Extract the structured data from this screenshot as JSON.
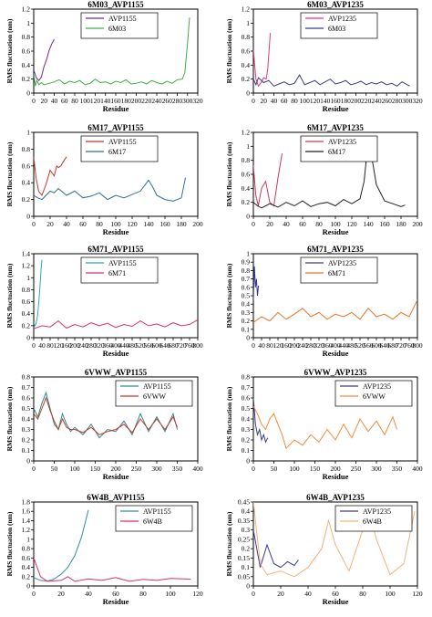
{
  "figure": {
    "ylabel": "RMS fluctuation (nm)",
    "xlabel": "Residue"
  },
  "chart_data": [
    {
      "type": "line",
      "title": "6M03_AVP1155",
      "xlim": [
        0,
        320
      ],
      "ylim": [
        0,
        1.2
      ],
      "xticks": [
        0,
        20,
        40,
        60,
        80,
        100,
        120,
        140,
        160,
        180,
        200,
        220,
        240,
        260,
        280,
        300,
        320
      ],
      "yticks": [
        0,
        0.2,
        0.4,
        0.6,
        0.8,
        1.0,
        1.2
      ],
      "legend": "top-center",
      "series": [
        {
          "name": "AVP1155",
          "color": "#6b2d8f",
          "x": [
            0,
            5,
            10,
            15,
            20,
            25,
            30,
            35,
            40
          ],
          "y": [
            0.33,
            0.22,
            0.18,
            0.23,
            0.38,
            0.48,
            0.61,
            0.7,
            0.77
          ]
        },
        {
          "name": "6M03",
          "color": "#3fae49",
          "x": [
            0,
            3,
            6,
            10,
            15,
            20,
            30,
            40,
            50,
            60,
            70,
            80,
            90,
            100,
            110,
            120,
            130,
            140,
            150,
            160,
            170,
            180,
            190,
            200,
            210,
            220,
            230,
            240,
            250,
            260,
            270,
            280,
            290,
            295,
            300,
            304
          ],
          "y": [
            0.28,
            0.1,
            0.18,
            0.12,
            0.15,
            0.12,
            0.14,
            0.16,
            0.19,
            0.13,
            0.17,
            0.15,
            0.18,
            0.12,
            0.14,
            0.2,
            0.15,
            0.16,
            0.13,
            0.17,
            0.15,
            0.19,
            0.13,
            0.14,
            0.16,
            0.13,
            0.18,
            0.15,
            0.13,
            0.17,
            0.14,
            0.19,
            0.2,
            0.3,
            0.72,
            1.08
          ]
        }
      ]
    },
    {
      "type": "line",
      "title": "6M03_AVP1235",
      "xlim": [
        0,
        320
      ],
      "ylim": [
        0,
        1.2
      ],
      "xticks": [
        0,
        20,
        40,
        60,
        80,
        100,
        120,
        140,
        160,
        180,
        200,
        220,
        240,
        260,
        280,
        300,
        320
      ],
      "yticks": [
        0,
        0.2,
        0.4,
        0.6,
        0.8,
        1.0,
        1.2
      ],
      "legend": "top-center",
      "series": [
        {
          "name": "AVP1235",
          "color": "#e8387a",
          "x": [
            0,
            5,
            10,
            15,
            20,
            25,
            28,
            30,
            33
          ],
          "y": [
            0.62,
            0.2,
            0.1,
            0.15,
            0.22,
            0.2,
            0.35,
            0.55,
            0.86
          ]
        },
        {
          "name": "6M03",
          "color": "#3a3a8c",
          "x": [
            0,
            5,
            10,
            20,
            30,
            40,
            50,
            60,
            70,
            80,
            90,
            100,
            110,
            120,
            130,
            140,
            150,
            160,
            170,
            180,
            190,
            200,
            210,
            220,
            230,
            240,
            250,
            260,
            270,
            280,
            290,
            300,
            305
          ],
          "y": [
            0.2,
            0.12,
            0.22,
            0.15,
            0.18,
            0.1,
            0.13,
            0.16,
            0.12,
            0.14,
            0.26,
            0.12,
            0.15,
            0.18,
            0.12,
            0.16,
            0.2,
            0.13,
            0.15,
            0.18,
            0.12,
            0.14,
            0.17,
            0.12,
            0.15,
            0.13,
            0.16,
            0.12,
            0.14,
            0.1,
            0.16,
            0.12,
            0.1
          ]
        }
      ]
    },
    {
      "type": "line",
      "title": "6M17_AVP1155",
      "xlim": [
        0,
        200
      ],
      "ylim": [
        0,
        1.0
      ],
      "xticks": [
        0,
        20,
        40,
        60,
        80,
        100,
        120,
        140,
        160,
        180,
        200
      ],
      "yticks": [
        0,
        0.2,
        0.4,
        0.6,
        0.8,
        1.0
      ],
      "legend": "top-center",
      "series": [
        {
          "name": "AVP1155",
          "color": "#c0392b",
          "x": [
            0,
            3,
            6,
            10,
            15,
            20,
            25,
            28,
            30,
            33,
            36,
            40
          ],
          "y": [
            0.7,
            0.45,
            0.3,
            0.25,
            0.38,
            0.55,
            0.48,
            0.6,
            0.58,
            0.6,
            0.65,
            0.71
          ]
        },
        {
          "name": "6M17",
          "color": "#2f6f8f",
          "x": [
            0,
            5,
            10,
            15,
            20,
            25,
            30,
            40,
            50,
            60,
            70,
            80,
            90,
            100,
            110,
            120,
            130,
            140,
            145,
            150,
            160,
            170,
            180,
            185
          ],
          "y": [
            0.25,
            0.22,
            0.2,
            0.25,
            0.3,
            0.28,
            0.33,
            0.25,
            0.3,
            0.22,
            0.24,
            0.28,
            0.2,
            0.25,
            0.22,
            0.26,
            0.3,
            0.43,
            0.35,
            0.25,
            0.2,
            0.18,
            0.22,
            0.46
          ]
        }
      ]
    },
    {
      "type": "line",
      "title": "6M17_AVP1235",
      "xlim": [
        0,
        200
      ],
      "ylim": [
        0,
        1.2
      ],
      "xticks": [
        0,
        20,
        40,
        60,
        80,
        100,
        120,
        140,
        160,
        180,
        200
      ],
      "yticks": [
        0,
        0.2,
        0.4,
        0.6,
        0.8,
        1.0,
        1.2
      ],
      "legend": "top-center",
      "series": [
        {
          "name": "AVP1235",
          "color": "#c83a5a",
          "x": [
            0,
            3,
            6,
            10,
            15,
            20,
            25,
            30,
            35
          ],
          "y": [
            0.72,
            0.3,
            0.15,
            0.4,
            0.5,
            0.2,
            0.15,
            0.55,
            0.9
          ]
        },
        {
          "name": "6M17",
          "color": "#222222",
          "x": [
            0,
            5,
            10,
            20,
            30,
            40,
            50,
            60,
            70,
            80,
            90,
            100,
            110,
            120,
            130,
            135,
            140,
            145,
            150,
            160,
            170,
            180,
            185
          ],
          "y": [
            0.2,
            0.15,
            0.12,
            0.18,
            0.13,
            0.2,
            0.15,
            0.22,
            0.14,
            0.18,
            0.2,
            0.15,
            0.24,
            0.18,
            0.25,
            0.5,
            1.08,
            0.8,
            0.45,
            0.22,
            0.18,
            0.14,
            0.16
          ]
        }
      ]
    },
    {
      "type": "line",
      "title": "6M71_AVP1155",
      "xlim": [
        0,
        800
      ],
      "ylim": [
        0,
        1.4
      ],
      "xticks": [
        0,
        40,
        80,
        120,
        160,
        200,
        240,
        280,
        320,
        360,
        400,
        440,
        480,
        520,
        560,
        600,
        640,
        680,
        720,
        760,
        800
      ],
      "yticks": [
        0,
        0.2,
        0.4,
        0.6,
        0.8,
        1.0,
        1.2,
        1.4
      ],
      "legend": "top-center",
      "series": [
        {
          "name": "AVP1155",
          "color": "#2fa6b8",
          "x": [
            0,
            5,
            10,
            15,
            20,
            25,
            30,
            35,
            40
          ],
          "y": [
            0.25,
            0.2,
            0.22,
            0.3,
            0.4,
            0.6,
            0.85,
            1.1,
            1.3
          ]
        },
        {
          "name": "6M71",
          "color": "#d6336c",
          "x": [
            0,
            40,
            80,
            120,
            160,
            200,
            240,
            280,
            320,
            360,
            400,
            440,
            480,
            520,
            560,
            600,
            640,
            680,
            720,
            760,
            800
          ],
          "y": [
            0.15,
            0.2,
            0.18,
            0.28,
            0.16,
            0.22,
            0.18,
            0.25,
            0.2,
            0.24,
            0.17,
            0.22,
            0.19,
            0.28,
            0.2,
            0.23,
            0.18,
            0.25,
            0.2,
            0.22,
            0.3
          ]
        }
      ]
    },
    {
      "type": "line",
      "title": "6M71_AVP1235",
      "xlim": [
        0,
        800
      ],
      "ylim": [
        0,
        1.0
      ],
      "xticks": [
        0,
        40,
        80,
        120,
        160,
        200,
        240,
        280,
        320,
        360,
        400,
        440,
        480,
        520,
        560,
        600,
        640,
        680,
        720,
        760,
        800
      ],
      "yticks": [
        0,
        0.1,
        0.2,
        0.3,
        0.4,
        0.5,
        0.6,
        0.7,
        0.8,
        0.9,
        1.0
      ],
      "legend": "top-center",
      "series": [
        {
          "name": "AVP1235",
          "color": "#3a3a8c",
          "x": [
            0,
            5,
            10,
            15,
            20,
            25
          ],
          "y": [
            0.45,
            0.85,
            0.6,
            0.7,
            0.5,
            0.62
          ]
        },
        {
          "name": "6M71",
          "color": "#e8762b",
          "x": [
            0,
            40,
            80,
            120,
            160,
            200,
            240,
            280,
            320,
            360,
            400,
            440,
            480,
            520,
            560,
            600,
            640,
            680,
            720,
            760,
            800
          ],
          "y": [
            0.18,
            0.25,
            0.2,
            0.3,
            0.22,
            0.28,
            0.35,
            0.25,
            0.3,
            0.22,
            0.28,
            0.25,
            0.3,
            0.22,
            0.35,
            0.25,
            0.28,
            0.22,
            0.3,
            0.25,
            0.45
          ]
        }
      ]
    },
    {
      "type": "line",
      "title": "6VWW_AVP1155",
      "xlim": [
        0,
        400
      ],
      "ylim": [
        0,
        0.8
      ],
      "xticks": [
        0,
        50,
        100,
        150,
        200,
        250,
        300,
        350,
        400
      ],
      "yticks": [
        0,
        0.1,
        0.2,
        0.3,
        0.4,
        0.5,
        0.6,
        0.7,
        0.8
      ],
      "legend": "top-right",
      "series": [
        {
          "name": "AVP1155",
          "color": "#2e8b8b",
          "x": [
            0,
            10,
            20,
            30,
            40,
            50,
            60,
            70,
            80,
            90,
            100,
            120,
            140,
            160,
            180,
            200,
            220,
            240,
            260,
            280,
            300,
            320,
            340,
            350
          ],
          "y": [
            0.5,
            0.42,
            0.55,
            0.65,
            0.5,
            0.35,
            0.3,
            0.45,
            0.35,
            0.28,
            0.32,
            0.25,
            0.35,
            0.22,
            0.3,
            0.28,
            0.38,
            0.25,
            0.45,
            0.28,
            0.42,
            0.28,
            0.45,
            0.3
          ]
        },
        {
          "name": "6VWW",
          "color": "#c0392b",
          "x": [
            0,
            10,
            20,
            30,
            40,
            50,
            60,
            70,
            80,
            90,
            100,
            120,
            140,
            160,
            180,
            200,
            220,
            240,
            260,
            280,
            300,
            320,
            340,
            350
          ],
          "y": [
            0.45,
            0.4,
            0.5,
            0.6,
            0.48,
            0.38,
            0.3,
            0.4,
            0.32,
            0.3,
            0.3,
            0.27,
            0.32,
            0.25,
            0.28,
            0.3,
            0.35,
            0.27,
            0.4,
            0.3,
            0.4,
            0.3,
            0.42,
            0.32
          ]
        }
      ]
    },
    {
      "type": "line",
      "title": "6VWW_AVP1235",
      "xlim": [
        0,
        400
      ],
      "ylim": [
        0,
        0.8
      ],
      "xticks": [
        0,
        50,
        100,
        150,
        200,
        250,
        300,
        350,
        400
      ],
      "yticks": [
        0,
        0.1,
        0.2,
        0.3,
        0.4,
        0.5,
        0.6,
        0.7,
        0.8
      ],
      "legend": "top-right",
      "series": [
        {
          "name": "AVP1235",
          "color": "#3a3a8c",
          "x": [
            0,
            5,
            10,
            15,
            20,
            25,
            30,
            35
          ],
          "y": [
            0.6,
            0.35,
            0.25,
            0.3,
            0.2,
            0.25,
            0.18,
            0.22
          ]
        },
        {
          "name": "6VWW",
          "color": "#f08a3c",
          "x": [
            0,
            10,
            20,
            30,
            40,
            50,
            60,
            70,
            80,
            100,
            120,
            140,
            160,
            180,
            200,
            220,
            240,
            260,
            280,
            300,
            320,
            340,
            350
          ],
          "y": [
            0.52,
            0.45,
            0.35,
            0.3,
            0.4,
            0.45,
            0.35,
            0.25,
            0.12,
            0.2,
            0.15,
            0.25,
            0.18,
            0.3,
            0.2,
            0.35,
            0.22,
            0.4,
            0.28,
            0.38,
            0.25,
            0.42,
            0.3
          ]
        }
      ]
    },
    {
      "type": "line",
      "title": "6W4B_AVP1155",
      "xlim": [
        0,
        120
      ],
      "ylim": [
        0,
        1.8
      ],
      "xticks": [
        0,
        20,
        40,
        60,
        80,
        100,
        120
      ],
      "yticks": [
        0,
        0.2,
        0.4,
        0.6,
        0.8,
        1.0,
        1.2,
        1.4,
        1.6,
        1.8
      ],
      "legend": "top-right",
      "series": [
        {
          "name": "AVP1155",
          "color": "#2e8fa6",
          "x": [
            0,
            5,
            10,
            15,
            20,
            25,
            30,
            35,
            40
          ],
          "y": [
            0.18,
            0.12,
            0.1,
            0.15,
            0.25,
            0.4,
            0.65,
            1.05,
            1.63
          ]
        },
        {
          "name": "6W4B",
          "color": "#d6336c",
          "x": [
            0,
            5,
            10,
            20,
            25,
            30,
            40,
            50,
            60,
            70,
            80,
            90,
            100,
            110,
            115
          ],
          "y": [
            0.6,
            0.2,
            0.1,
            0.12,
            0.2,
            0.1,
            0.15,
            0.12,
            0.18,
            0.1,
            0.14,
            0.12,
            0.16,
            0.15,
            0.14
          ]
        }
      ]
    },
    {
      "type": "line",
      "title": "6W4B_AVP1235",
      "xlim": [
        0,
        120
      ],
      "ylim": [
        0,
        0.45
      ],
      "xticks": [
        0,
        20,
        40,
        60,
        80,
        100,
        120
      ],
      "yticks": [
        0,
        0.05,
        0.1,
        0.15,
        0.2,
        0.25,
        0.3,
        0.35,
        0.4,
        0.45
      ],
      "legend": "top-right",
      "series": [
        {
          "name": "AVP1235",
          "color": "#3a3a8c",
          "x": [
            0,
            5,
            10,
            15,
            20,
            25,
            30,
            33
          ],
          "y": [
            0.3,
            0.1,
            0.22,
            0.12,
            0.1,
            0.13,
            0.11,
            0.14
          ]
        },
        {
          "name": "6W4B",
          "color": "#f5b27a",
          "x": [
            0,
            5,
            10,
            20,
            30,
            40,
            50,
            55,
            60,
            70,
            80,
            85,
            90,
            100,
            110,
            118
          ],
          "y": [
            0.45,
            0.12,
            0.06,
            0.08,
            0.05,
            0.1,
            0.2,
            0.35,
            0.22,
            0.08,
            0.3,
            0.4,
            0.25,
            0.06,
            0.12,
            0.4
          ]
        }
      ]
    }
  ]
}
